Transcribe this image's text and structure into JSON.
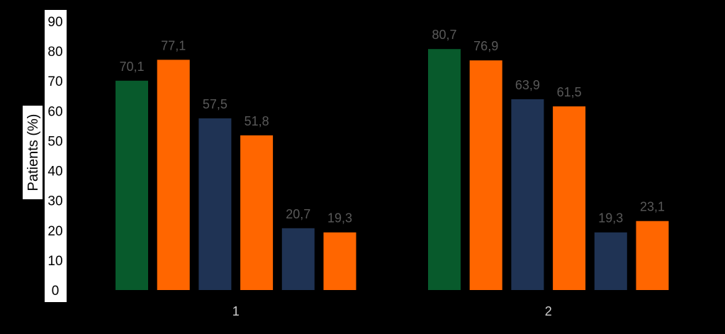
{
  "chart_data": {
    "type": "bar",
    "title": "",
    "xlabel": "",
    "ylabel": "Patients (%)",
    "ylim": [
      0,
      90
    ],
    "yticks": [
      0,
      10,
      20,
      30,
      40,
      50,
      60,
      70,
      80,
      90
    ],
    "grid": false,
    "legend": "none",
    "categories": [
      "1",
      "2"
    ],
    "series": [
      {
        "values": [
          70.1,
          80.7
        ],
        "labels": [
          "70,1",
          "80,7"
        ],
        "color": "#085a2c"
      },
      {
        "values": [
          77.1,
          76.9
        ],
        "labels": [
          "77,1",
          "76,9"
        ],
        "color": "#ff6600"
      },
      {
        "values": [
          57.5,
          63.9
        ],
        "labels": [
          "57,5",
          "63,9"
        ],
        "color": "#1f3354"
      },
      {
        "values": [
          51.8,
          61.5
        ],
        "labels": [
          "51,8",
          "61,5"
        ],
        "color": "#ff6600"
      },
      {
        "values": [
          20.7,
          19.3
        ],
        "labels": [
          "20,7",
          "19,3"
        ],
        "color": "#1f3354"
      },
      {
        "values": [
          19.3,
          23.1
        ],
        "labels": [
          "19,3",
          "23,1"
        ],
        "color": "#ff6600"
      }
    ]
  }
}
